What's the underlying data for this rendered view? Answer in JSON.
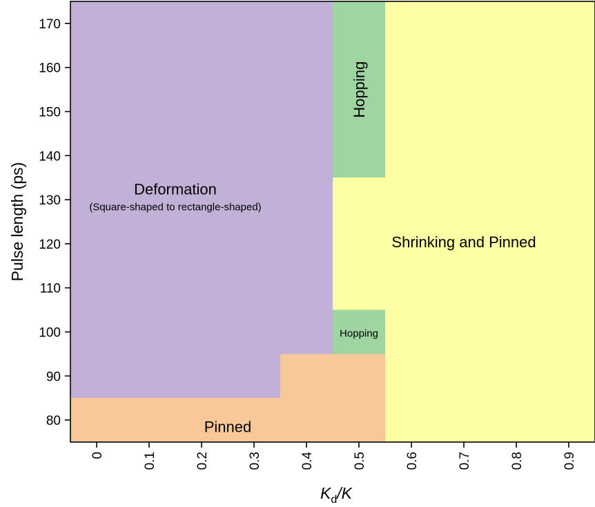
{
  "chart_data": {
    "type": "heatmap",
    "title": "",
    "xlabel_main": "K",
    "xlabel_sub": "d",
    "xlabel_rest": "/K",
    "ylabel": "Pulse length (ps)",
    "xlim": [
      -0.05,
      0.95
    ],
    "ylim": [
      75,
      175
    ],
    "x_ticks": [
      "0",
      "0.1",
      "0.2",
      "0.3",
      "0.4",
      "0.5",
      "0.6",
      "0.7",
      "0.8",
      "0.9"
    ],
    "x_tick_values": [
      0,
      0.1,
      0.2,
      0.3,
      0.4,
      0.5,
      0.6,
      0.7,
      0.8,
      0.9
    ],
    "y_ticks": [
      "80",
      "90",
      "100",
      "110",
      "120",
      "130",
      "140",
      "150",
      "160",
      "170"
    ],
    "y_tick_values": [
      80,
      90,
      100,
      110,
      120,
      130,
      140,
      150,
      160,
      170
    ],
    "grid": false,
    "colors": {
      "deformation": "#c2b1d7",
      "pinned": "#f8c898",
      "hopping": "#9fd5a0",
      "shrinking": "#fefea2"
    },
    "regions": [
      {
        "phase": "deformation",
        "x0": -0.05,
        "x1": 0.35,
        "y0": 85,
        "y1": 175
      },
      {
        "phase": "deformation",
        "x0": 0.35,
        "x1": 0.45,
        "y0": 95,
        "y1": 175
      },
      {
        "phase": "pinned",
        "x0": -0.05,
        "x1": 0.35,
        "y0": 75,
        "y1": 85
      },
      {
        "phase": "pinned",
        "x0": 0.35,
        "x1": 0.55,
        "y0": 75,
        "y1": 95
      },
      {
        "phase": "hopping",
        "x0": 0.45,
        "x1": 0.55,
        "y0": 135,
        "y1": 175
      },
      {
        "phase": "hopping",
        "x0": 0.45,
        "x1": 0.55,
        "y0": 95,
        "y1": 105
      },
      {
        "phase": "shrinking",
        "x0": 0.45,
        "x1": 0.55,
        "y0": 105,
        "y1": 135
      },
      {
        "phase": "shrinking",
        "x0": 0.55,
        "x1": 0.95,
        "y0": 75,
        "y1": 175
      }
    ],
    "annotations": {
      "deformation": "Deformation",
      "deformation_sub": "(Square-shaped to rectangle-shaped)",
      "hopping_top": "Hopping",
      "hopping_small": "Hopping",
      "shrinking": "Shrinking and Pinned",
      "pinned": "Pinned"
    }
  }
}
